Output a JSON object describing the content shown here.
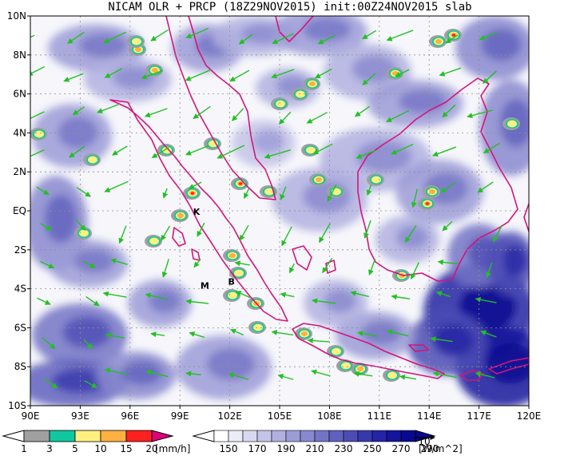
{
  "title": "NICAM OLR + PRCP (18Z29NOV2015) init:00Z24NOV2015 slab",
  "map": {
    "lon_range": [
      90,
      120
    ],
    "lat_range": [
      -10,
      10
    ],
    "x_ticks": [
      {
        "lon": 90,
        "label": "90E"
      },
      {
        "lon": 93,
        "label": "93E"
      },
      {
        "lon": 96,
        "label": "96E"
      },
      {
        "lon": 99,
        "label": "99E"
      },
      {
        "lon": 102,
        "label": "102E"
      },
      {
        "lon": 105,
        "label": "105E"
      },
      {
        "lon": 108,
        "label": "108E"
      },
      {
        "lon": 111,
        "label": "111E"
      },
      {
        "lon": 114,
        "label": "114E"
      },
      {
        "lon": 117,
        "label": "117E"
      },
      {
        "lon": 120,
        "label": "120E"
      }
    ],
    "y_ticks": [
      {
        "lat": 10,
        "label": "10N"
      },
      {
        "lat": 8,
        "label": "8N"
      },
      {
        "lat": 6,
        "label": "6N"
      },
      {
        "lat": 4,
        "label": "4N"
      },
      {
        "lat": 2,
        "label": "2N"
      },
      {
        "lat": 0,
        "label": "EQ"
      },
      {
        "lat": -2,
        "label": "2S"
      },
      {
        "lat": -4,
        "label": "4S"
      },
      {
        "lat": -6,
        "label": "6S"
      },
      {
        "lat": -8,
        "label": "8S"
      },
      {
        "lat": -10,
        "label": "10S"
      }
    ],
    "markers": [
      {
        "label": "K",
        "lon": 100.0,
        "lat": -0.2
      },
      {
        "label": "M",
        "lon": 100.5,
        "lat": -4.0
      },
      {
        "label": "B",
        "lon": 102.1,
        "lat": -3.8
      }
    ],
    "coast_color": "#d4157a",
    "wind_color": "#22c022"
  },
  "prcp_colorbar": {
    "colors": [
      "#a0a0a0",
      "#10c8a0",
      "#fff080",
      "#ffb040",
      "#ff2020",
      "#e0007a"
    ],
    "labels": [
      "1",
      "3",
      "5",
      "10",
      "15",
      "20"
    ],
    "unit": "[mm/h]"
  },
  "olr_colorbar": {
    "colors": [
      "#ffffff",
      "#ececf7",
      "#d8d8ef",
      "#c4c4e8",
      "#b0b0e0",
      "#9c9cd7",
      "#8888cf",
      "#7474c6",
      "#6060be",
      "#4c4cb5",
      "#3838ad",
      "#2424a4",
      "#14149c",
      "#080890"
    ],
    "labels": [
      "150",
      "170",
      "190",
      "210",
      "230",
      "250",
      "270",
      "290"
    ],
    "unit": "[W/m^2]",
    "ref_vector_label": "10"
  }
}
